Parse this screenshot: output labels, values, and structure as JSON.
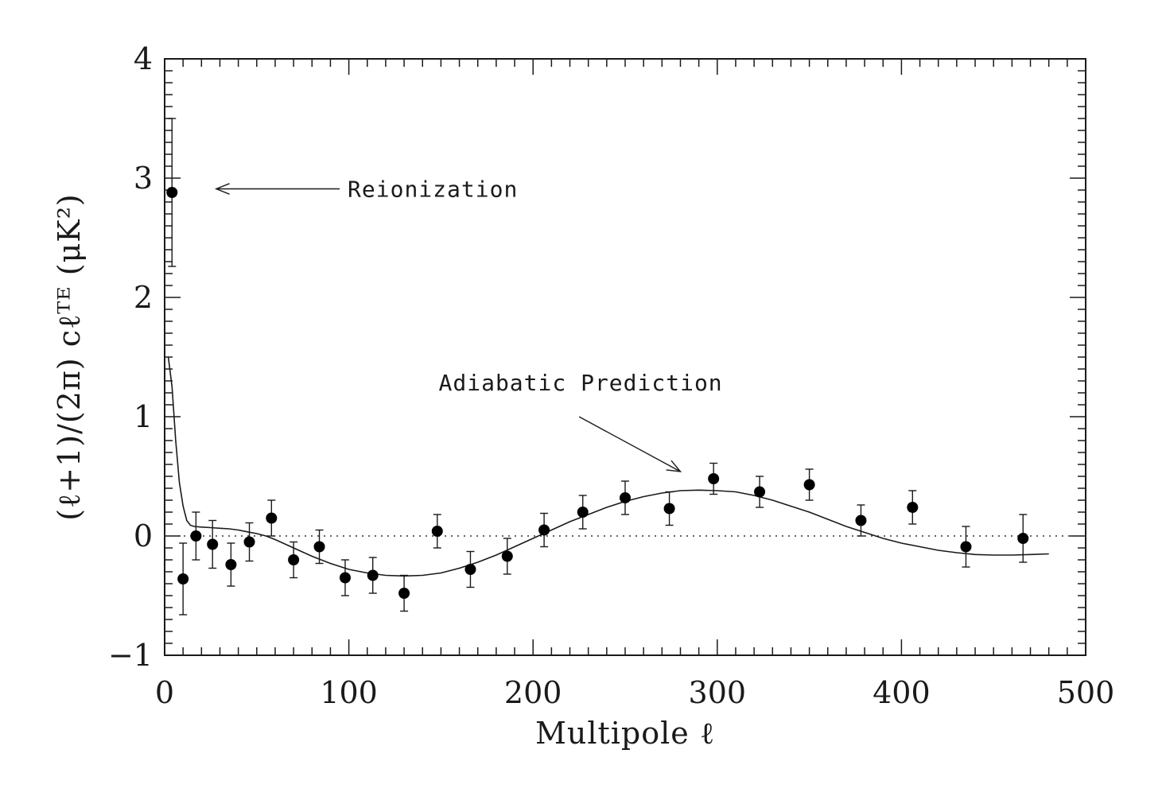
{
  "chart_data": {
    "type": "scatter",
    "xlabel": "Multipole ℓ",
    "ylabel": "(ℓ+1)/(2π) cℓᵀᴱ (μK²)",
    "xlim": [
      0,
      500
    ],
    "ylim": [
      -1,
      4
    ],
    "x_ticks": [
      0,
      100,
      200,
      300,
      400,
      500
    ],
    "x_tick_labels": [
      "0",
      "100",
      "200",
      "300",
      "400",
      "500"
    ],
    "y_ticks": [
      -1,
      0,
      1,
      2,
      3,
      4
    ],
    "y_tick_labels": [
      "−1",
      "0",
      "1",
      "2",
      "3",
      "4"
    ],
    "grid": false,
    "zero_line": "dotted",
    "points": [
      {
        "x": 4,
        "y": 2.88,
        "err": 0.62
      },
      {
        "x": 10,
        "y": -0.36,
        "err": 0.3
      },
      {
        "x": 17,
        "y": 0.0,
        "err": 0.2
      },
      {
        "x": 26,
        "y": -0.07,
        "err": 0.2
      },
      {
        "x": 36,
        "y": -0.24,
        "err": 0.18
      },
      {
        "x": 46,
        "y": -0.05,
        "err": 0.16
      },
      {
        "x": 58,
        "y": 0.15,
        "err": 0.15
      },
      {
        "x": 70,
        "y": -0.2,
        "err": 0.15
      },
      {
        "x": 84,
        "y": -0.09,
        "err": 0.14
      },
      {
        "x": 98,
        "y": -0.35,
        "err": 0.15
      },
      {
        "x": 113,
        "y": -0.33,
        "err": 0.15
      },
      {
        "x": 130,
        "y": -0.48,
        "err": 0.15
      },
      {
        "x": 148,
        "y": 0.04,
        "err": 0.14
      },
      {
        "x": 166,
        "y": -0.28,
        "err": 0.15
      },
      {
        "x": 186,
        "y": -0.17,
        "err": 0.15
      },
      {
        "x": 206,
        "y": 0.05,
        "err": 0.14
      },
      {
        "x": 227,
        "y": 0.2,
        "err": 0.14
      },
      {
        "x": 250,
        "y": 0.32,
        "err": 0.14
      },
      {
        "x": 274,
        "y": 0.23,
        "err": 0.14
      },
      {
        "x": 298,
        "y": 0.48,
        "err": 0.13
      },
      {
        "x": 323,
        "y": 0.37,
        "err": 0.13
      },
      {
        "x": 350,
        "y": 0.43,
        "err": 0.13
      },
      {
        "x": 378,
        "y": 0.13,
        "err": 0.13
      },
      {
        "x": 406,
        "y": 0.24,
        "err": 0.14
      },
      {
        "x": 435,
        "y": -0.09,
        "err": 0.17
      },
      {
        "x": 466,
        "y": -0.02,
        "err": 0.2
      }
    ],
    "model_curve": {
      "x": [
        2,
        4,
        6,
        8,
        10,
        12,
        14,
        16,
        20,
        25,
        30,
        35,
        40,
        45,
        50,
        55,
        60,
        70,
        80,
        90,
        100,
        110,
        120,
        130,
        140,
        150,
        160,
        170,
        180,
        190,
        200,
        210,
        220,
        230,
        240,
        250,
        260,
        270,
        280,
        290,
        300,
        310,
        320,
        330,
        340,
        350,
        360,
        370,
        380,
        390,
        400,
        410,
        420,
        430,
        440,
        450,
        460,
        470,
        480
      ],
      "y": [
        1.5,
        1.25,
        0.8,
        0.45,
        0.25,
        0.13,
        0.09,
        0.08,
        0.075,
        0.07,
        0.065,
        0.06,
        0.05,
        0.035,
        0.02,
        0.0,
        -0.03,
        -0.1,
        -0.17,
        -0.23,
        -0.28,
        -0.31,
        -0.33,
        -0.335,
        -0.33,
        -0.31,
        -0.27,
        -0.22,
        -0.16,
        -0.09,
        -0.02,
        0.05,
        0.12,
        0.18,
        0.24,
        0.29,
        0.33,
        0.36,
        0.38,
        0.385,
        0.38,
        0.37,
        0.34,
        0.3,
        0.25,
        0.2,
        0.14,
        0.08,
        0.03,
        -0.02,
        -0.06,
        -0.09,
        -0.12,
        -0.14,
        -0.155,
        -0.16,
        -0.16,
        -0.155,
        -0.15
      ]
    },
    "annotations": [
      {
        "text": "Reionization",
        "arrow_tail": [
          95,
          2.91
        ],
        "arrow_head": [
          28,
          2.91
        ]
      },
      {
        "text": "Adiabatic Prediction",
        "arrow_tail": [
          225,
          1.0
        ],
        "arrow_head": [
          280,
          0.54
        ]
      }
    ]
  }
}
